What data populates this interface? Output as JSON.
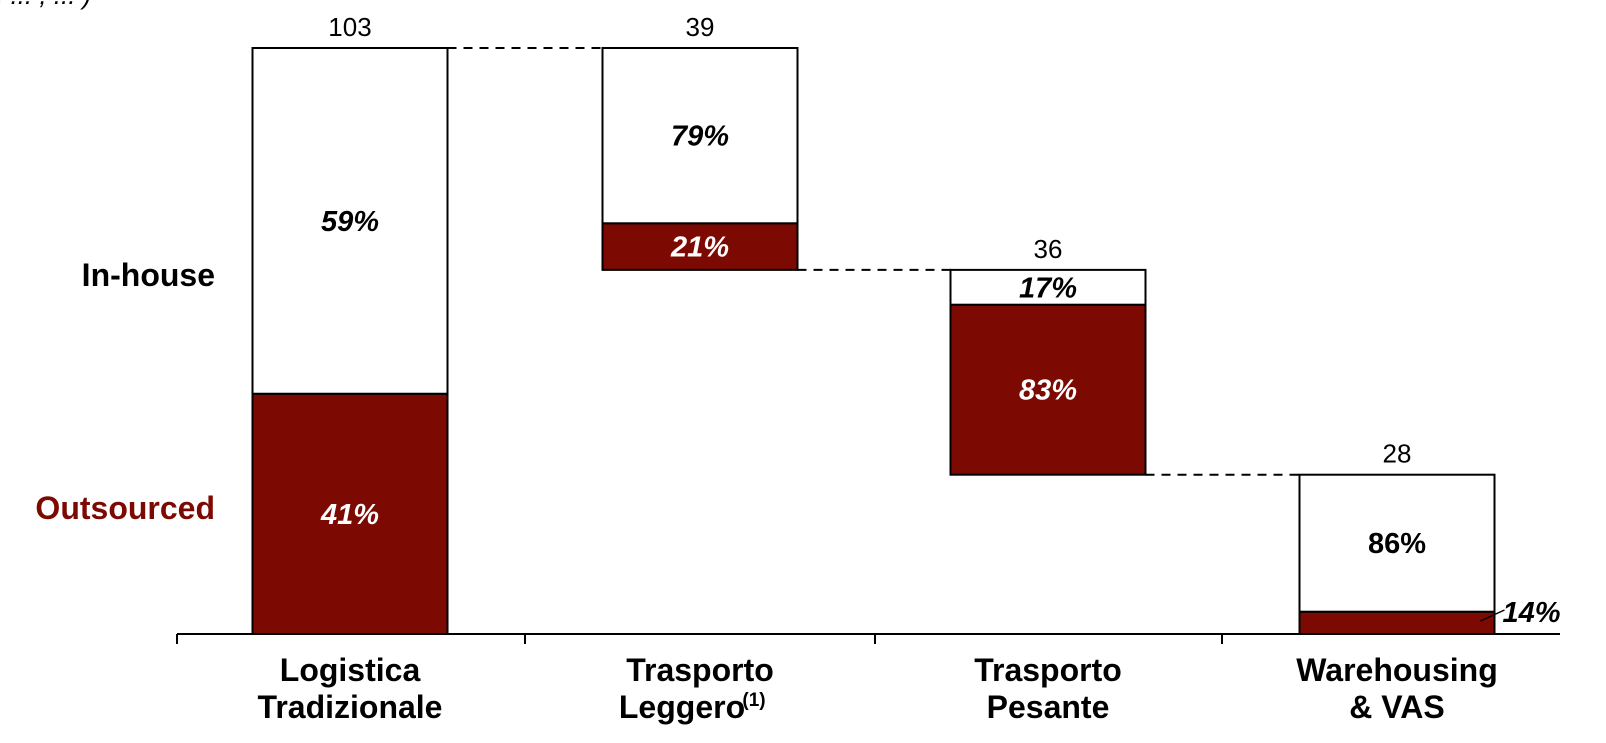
{
  "chart_data": {
    "type": "bar",
    "variant": "waterfall-stacked",
    "header_fragment": ", ... , ... )",
    "row_labels": {
      "inhouse": "In-house",
      "outsourced": "Outsourced"
    },
    "colors": {
      "outsourced": "#7d0a02",
      "inhouse": "#ffffff",
      "border": "#000000",
      "outsourced_label": "#7d0a02"
    },
    "categories": [
      {
        "label_lines": [
          "Logistica",
          "Tradizionale"
        ],
        "sup": ""
      },
      {
        "label_lines": [
          "Trasporto",
          "Leggero"
        ],
        "sup": "(1)"
      },
      {
        "label_lines": [
          "Trasporto",
          "Pesante"
        ],
        "sup": ""
      },
      {
        "label_lines": [
          "Warehousing",
          "& VAS"
        ],
        "sup": ""
      }
    ],
    "totals": [
      103,
      39,
      36,
      28
    ],
    "totals_labels": [
      "103",
      "39",
      "36",
      "28"
    ],
    "series": [
      {
        "name": "Outsourced",
        "percent": [
          41,
          21,
          83,
          14
        ],
        "labels": [
          "41%",
          "21%",
          "83%",
          "14%"
        ]
      },
      {
        "name": "In-house",
        "percent": [
          59,
          79,
          17,
          86
        ],
        "labels": [
          "59%",
          "79%",
          "17%",
          "86%"
        ]
      }
    ],
    "ylim": [
      0,
      103
    ],
    "grid": false
  }
}
